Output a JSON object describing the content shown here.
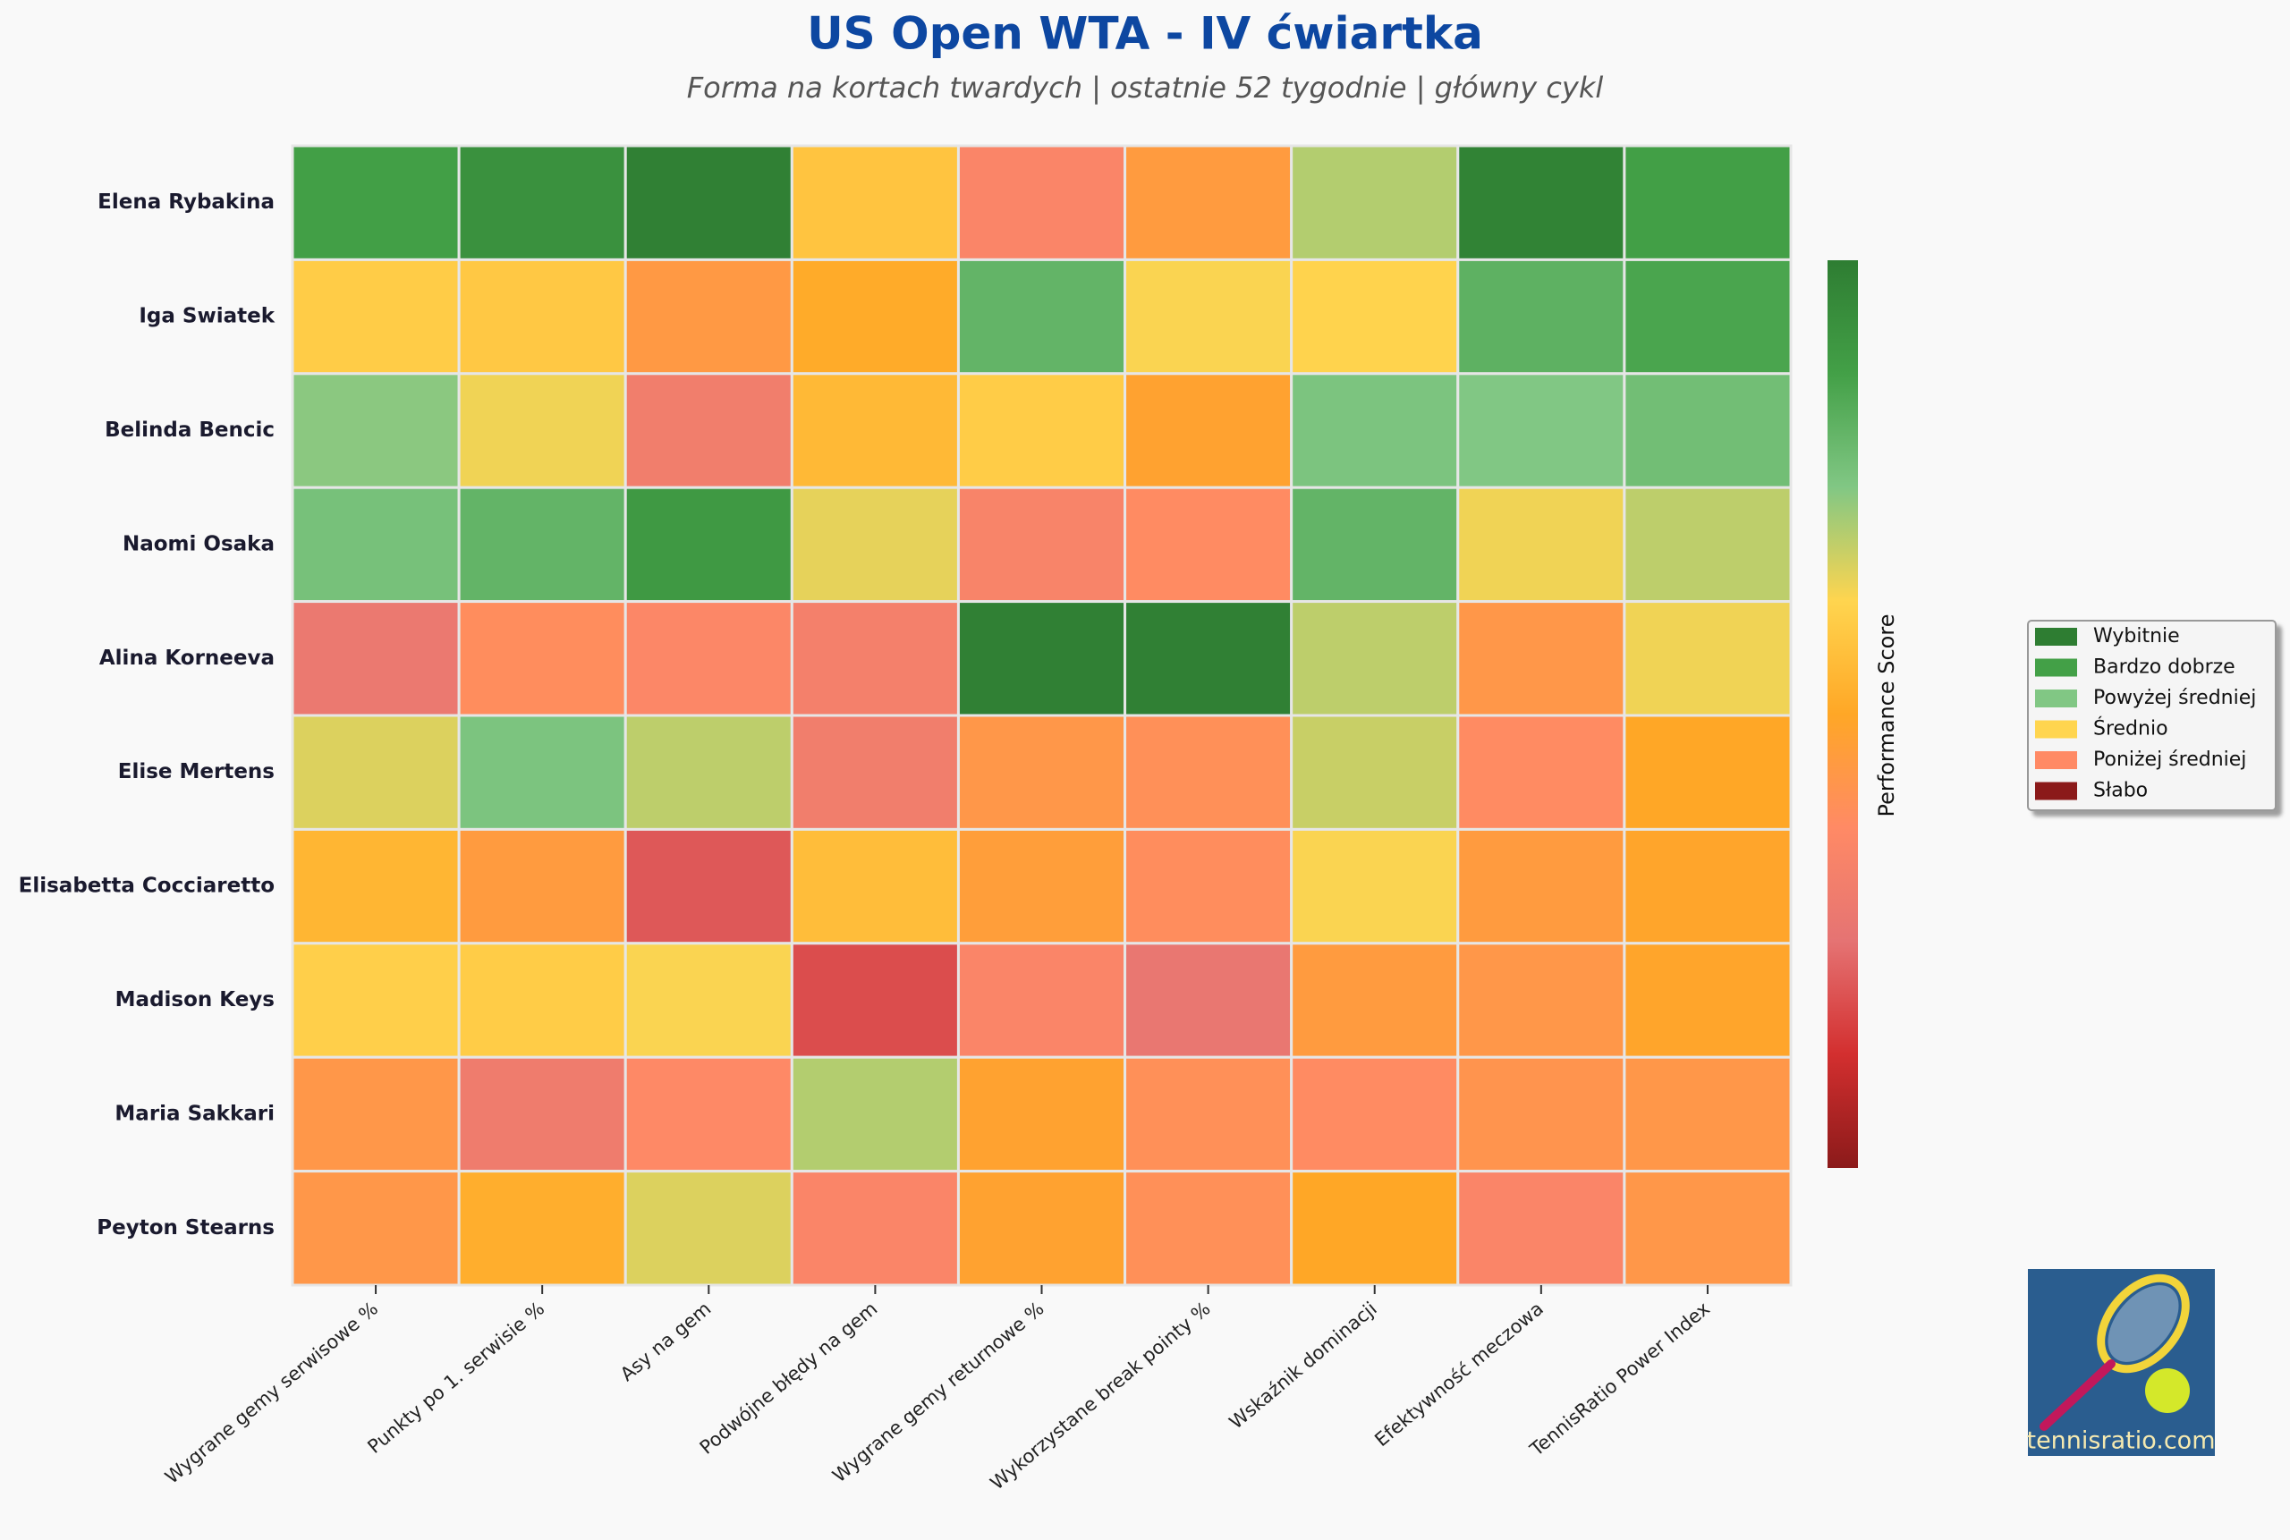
{
  "chart_data": {
    "type": "heatmap",
    "title": "US Open WTA - IV ćwiartka",
    "subtitle": "Forma na kortach twardych | ostatnie 52 tygodnie | główny cykl",
    "x_categories": [
      "Wygrane gemy serwisowe %",
      "Punkty po 1. serwisie %",
      "Asy na gem",
      "Podwójne błędy na gem",
      "Wygrane gemy returnowe %",
      "Wykorzystane break pointy %",
      "Wskaźnik dominacji",
      "Efektywność meczowa",
      "TennisRatio Power Index"
    ],
    "y_categories": [
      "Elena Rybakina",
      "Iga Swiatek",
      "Belinda Bencic",
      "Naomi Osaka",
      "Alina Korneeva",
      "Elise Mertens",
      "Elisabetta Cocciaretto",
      "Madison Keys",
      "Maria Sakkari",
      "Peyton Stearns"
    ],
    "values": [
      [
        88,
        93,
        99,
        58,
        35,
        45,
        70,
        98,
        88
      ],
      [
        60,
        59,
        44,
        51,
        81,
        63,
        62,
        82,
        86
      ],
      [
        74,
        64,
        31,
        55,
        60,
        48,
        76,
        75,
        78
      ],
      [
        77,
        81,
        90,
        65,
        34,
        38,
        81,
        64,
        69
      ],
      [
        28,
        39,
        36,
        32,
        99,
        99,
        69,
        43,
        64
      ],
      [
        66,
        76,
        69,
        31,
        43,
        40,
        68,
        38,
        50
      ],
      [
        54,
        45,
        20,
        56,
        46,
        39,
        63,
        45,
        49
      ],
      [
        61,
        60,
        63,
        18,
        35,
        27,
        45,
        43,
        49
      ],
      [
        43,
        30,
        37,
        70,
        48,
        40,
        38,
        42,
        43
      ],
      [
        43,
        52,
        66,
        35,
        48,
        40,
        50,
        35,
        43
      ]
    ],
    "zlim": [
      0,
      100
    ],
    "colormap": [
      "#8b1a1a",
      "#d32f2f",
      "#e57373",
      "#ff8a65",
      "#ffa726",
      "#ffd54f",
      "#81c784",
      "#43a047",
      "#2e7d32"
    ],
    "colorbar_label": "Performance Score",
    "legend": [
      {
        "name": "Wybitnie",
        "color": "#2e7d32"
      },
      {
        "name": "Bardzo dobrze",
        "color": "#43a047"
      },
      {
        "name": "Powyżej średniej",
        "color": "#81c784"
      },
      {
        "name": "Średnio",
        "color": "#ffd54f"
      },
      {
        "name": "Poniżej średniej",
        "color": "#ff8a65"
      },
      {
        "name": "Słabo",
        "color": "#8b1a1a"
      }
    ],
    "logo_text": "tennisratio.com"
  }
}
